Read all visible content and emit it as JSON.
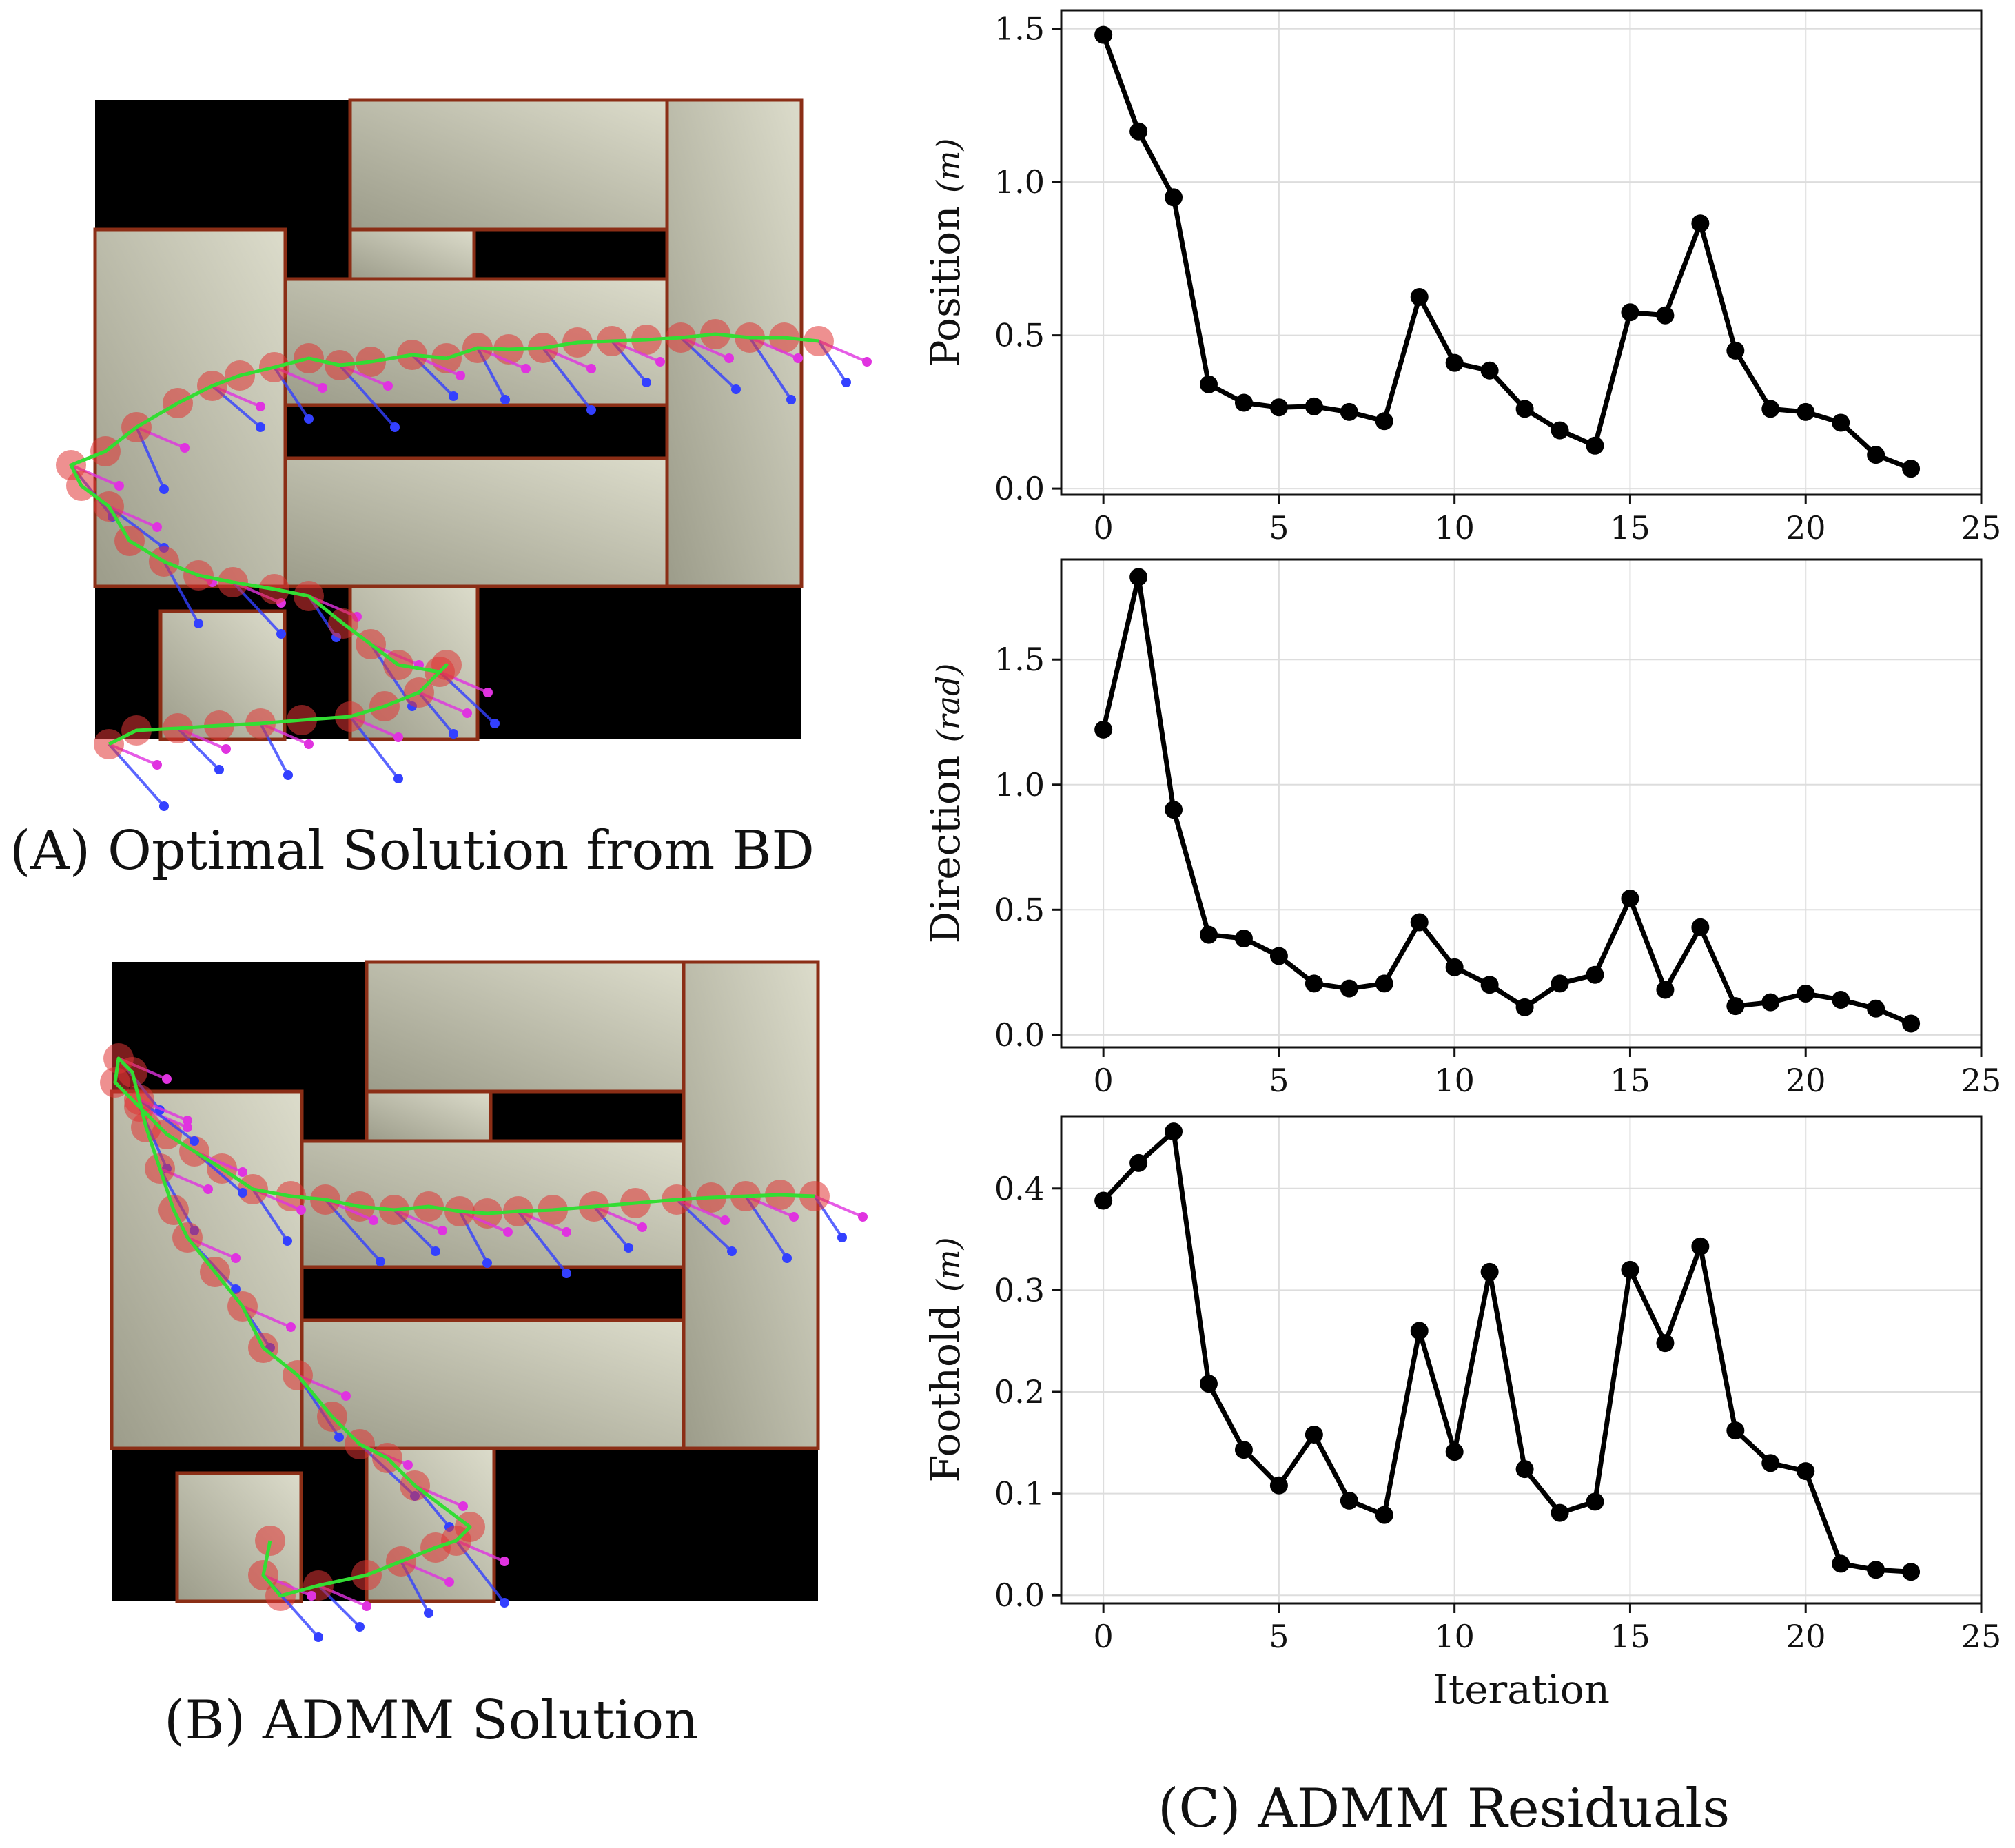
{
  "captions": {
    "a": "(A) Optimal Solution from BD",
    "b": "(B) ADMM Solution",
    "c": "(C) ADMM Residuals"
  },
  "colors": {
    "obstacle": "#000000",
    "region_fill": "#c9c9b6",
    "region_border": "#8b2e16",
    "trajectory": "#33dd33",
    "body": "#e03434",
    "foot_a": "#3340ff",
    "foot_b": "#e033e0",
    "line": "#000000"
  },
  "chart_data": [
    {
      "type": "line",
      "ylabel": "Position",
      "yunit": "(m)",
      "xlabel": "",
      "xlim": [
        -1.2,
        25
      ],
      "ylim": [
        -0.02,
        1.56
      ],
      "xticks": [
        0,
        5,
        10,
        15,
        20,
        25
      ],
      "yticks": [
        "0.0",
        "0.5",
        "1.0",
        "1.5"
      ],
      "grid": true,
      "x": [
        0,
        1,
        2,
        3,
        4,
        5,
        6,
        7,
        8,
        9,
        10,
        11,
        12,
        13,
        14,
        15,
        16,
        17,
        18,
        19,
        20,
        21,
        22,
        23
      ],
      "values": [
        1.48,
        1.165,
        0.95,
        0.34,
        0.28,
        0.265,
        0.268,
        0.25,
        0.22,
        0.625,
        0.41,
        0.385,
        0.26,
        0.19,
        0.14,
        0.575,
        0.565,
        0.865,
        0.45,
        0.26,
        0.25,
        0.215,
        0.11,
        0.065
      ]
    },
    {
      "type": "line",
      "ylabel": "Direction",
      "yunit": "(rad)",
      "xlabel": "",
      "xlim": [
        -1.2,
        25
      ],
      "ylim": [
        -0.05,
        1.9
      ],
      "xticks": [
        0,
        5,
        10,
        15,
        20,
        25
      ],
      "yticks": [
        "0.0",
        "0.5",
        "1.0",
        "1.5"
      ],
      "grid": true,
      "x": [
        0,
        1,
        2,
        3,
        4,
        5,
        6,
        7,
        8,
        9,
        10,
        11,
        12,
        13,
        14,
        15,
        16,
        17,
        18,
        19,
        20,
        21,
        22,
        23
      ],
      "values": [
        1.22,
        1.83,
        0.9,
        0.4,
        0.385,
        0.315,
        0.205,
        0.185,
        0.205,
        0.45,
        0.27,
        0.2,
        0.11,
        0.205,
        0.24,
        0.545,
        0.18,
        0.43,
        0.115,
        0.13,
        0.165,
        0.14,
        0.105,
        0.045
      ]
    },
    {
      "type": "line",
      "ylabel": "Foothold",
      "yunit": "(m)",
      "xlabel": "Iteration",
      "xlim": [
        -1.2,
        25
      ],
      "ylim": [
        -0.008,
        0.471
      ],
      "xticks": [
        0,
        5,
        10,
        15,
        20,
        25
      ],
      "yticks": [
        "0.0",
        "0.1",
        "0.2",
        "0.3",
        "0.4"
      ],
      "grid": true,
      "x": [
        0,
        1,
        2,
        3,
        4,
        5,
        6,
        7,
        8,
        9,
        10,
        11,
        12,
        13,
        14,
        15,
        16,
        17,
        18,
        19,
        20,
        21,
        22,
        23
      ],
      "values": [
        0.388,
        0.425,
        0.456,
        0.208,
        0.143,
        0.108,
        0.158,
        0.093,
        0.079,
        0.26,
        0.141,
        0.318,
        0.124,
        0.081,
        0.092,
        0.32,
        0.248,
        0.343,
        0.162,
        0.13,
        0.122,
        0.031,
        0.025,
        0.023
      ]
    }
  ]
}
